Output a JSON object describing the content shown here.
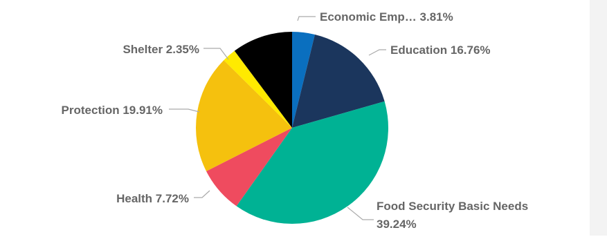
{
  "chart_data": {
    "type": "pie",
    "start_angle_deg": 0,
    "direction": "clockwise",
    "slices": [
      {
        "label": "Economic Emp…",
        "value": 3.81,
        "display": "3.81%",
        "color": "#0a6fbf"
      },
      {
        "label": "Education",
        "value": 16.76,
        "display": "16.76%",
        "color": "#1b365d"
      },
      {
        "label": "Food Security Basic Needs",
        "value": 39.24,
        "display": "39.24%",
        "color": "#00b294"
      },
      {
        "label": "Health",
        "value": 7.72,
        "display": "7.72%",
        "color": "#ef4b5f"
      },
      {
        "label": "Protection",
        "value": 19.91,
        "display": "19.91%",
        "color": "#f5c10e"
      },
      {
        "label": "Shelter",
        "value": 2.35,
        "display": "2.35%",
        "color": "#ffea00"
      },
      {
        "label": "",
        "value": 10.21,
        "display": "",
        "color": "#000000"
      }
    ]
  }
}
